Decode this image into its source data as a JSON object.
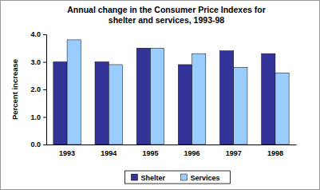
{
  "chart_data": {
    "type": "bar",
    "title": "Annual change in the Consumer Price Indexes for\nshelter and services, 1993-98",
    "y_label": "Percent increase",
    "categories": [
      "1993",
      "1994",
      "1995",
      "1996",
      "1997",
      "1998"
    ],
    "series": [
      {
        "name": "Shelter",
        "color": "#333399",
        "values": [
          3.0,
          3.0,
          3.5,
          2.9,
          3.4,
          3.3
        ]
      },
      {
        "name": "Services",
        "color": "#99ccff",
        "values": [
          3.8,
          2.9,
          3.5,
          3.3,
          2.8,
          2.6
        ]
      }
    ],
    "ylim": [
      0,
      4
    ],
    "yticks": [
      {
        "value": 0,
        "label": "0.0"
      },
      {
        "value": 1,
        "label": "1.0"
      },
      {
        "value": 2,
        "label": "2.0"
      },
      {
        "value": 3,
        "label": "3.0"
      },
      {
        "value": 4,
        "label": "4.0"
      }
    ],
    "grid": false,
    "legend": "bottom"
  }
}
